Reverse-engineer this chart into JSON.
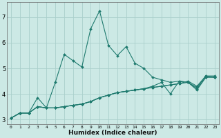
{
  "title": "",
  "xlabel": "Humidex (Indice chaleur)",
  "ylabel": "",
  "xlim": [
    -0.5,
    23.5
  ],
  "ylim": [
    2.8,
    7.6
  ],
  "xticks": [
    0,
    1,
    2,
    3,
    4,
    5,
    6,
    7,
    8,
    9,
    10,
    11,
    12,
    13,
    14,
    15,
    16,
    17,
    18,
    19,
    20,
    21,
    22,
    23
  ],
  "yticks": [
    3,
    4,
    5,
    6,
    7
  ],
  "bg_color": "#cce9e5",
  "grid_color": "#aacfcb",
  "line_color": "#1e7a6e",
  "series": [
    [
      3.05,
      3.25,
      3.25,
      3.85,
      3.45,
      4.45,
      5.55,
      5.3,
      5.05,
      6.55,
      7.25,
      5.9,
      5.5,
      5.85,
      5.2,
      5.0,
      4.65,
      4.55,
      4.45,
      4.5,
      4.45,
      4.2,
      4.65,
      4.65
    ],
    [
      3.05,
      3.25,
      3.25,
      3.5,
      3.45,
      3.45,
      3.5,
      3.55,
      3.6,
      3.7,
      3.85,
      3.95,
      4.05,
      4.1,
      4.15,
      4.2,
      4.25,
      4.3,
      4.35,
      4.4,
      4.45,
      4.15,
      4.65,
      4.65
    ],
    [
      3.05,
      3.25,
      3.25,
      3.5,
      3.45,
      3.45,
      3.5,
      3.55,
      3.6,
      3.7,
      3.85,
      3.95,
      4.05,
      4.1,
      4.15,
      4.2,
      4.3,
      4.45,
      4.0,
      4.5,
      4.45,
      4.25,
      4.7,
      4.65
    ],
    [
      3.05,
      3.25,
      3.25,
      3.5,
      3.45,
      3.45,
      3.5,
      3.55,
      3.6,
      3.7,
      3.85,
      3.95,
      4.05,
      4.1,
      4.15,
      4.2,
      4.25,
      4.3,
      4.35,
      4.4,
      4.5,
      4.3,
      4.7,
      4.7
    ]
  ]
}
